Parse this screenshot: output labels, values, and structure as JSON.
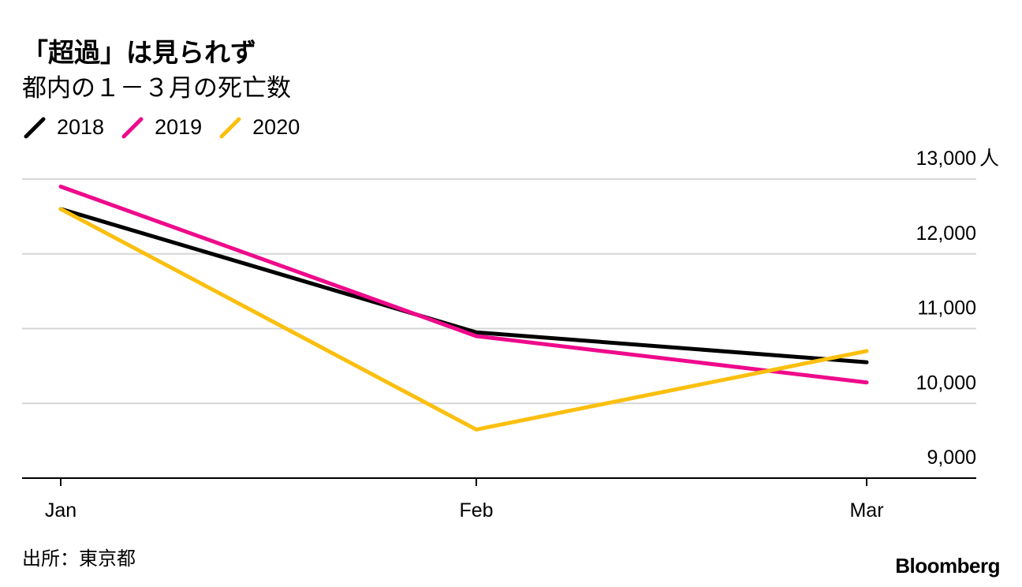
{
  "chart_data": {
    "type": "line",
    "title": "「超過」は見られず",
    "subtitle": "都内の１－３月の死亡数",
    "categories": [
      "Jan",
      "Feb",
      "Mar"
    ],
    "series": [
      {
        "name": "2018",
        "color": "#000000",
        "values": [
          12600,
          10950,
          10550
        ]
      },
      {
        "name": "2019",
        "color": "#ee0a8b",
        "values": [
          12900,
          10900,
          10280
        ]
      },
      {
        "name": "2020",
        "color": "#fbbf0f",
        "values": [
          12600,
          9650,
          10700
        ]
      }
    ],
    "yticks": [
      9000,
      10000,
      11000,
      12000,
      13000
    ],
    "ytick_labels": [
      "9,000",
      "10,000",
      "11,000",
      "12,000",
      "13,000"
    ],
    "y_unit": "人",
    "ylim": [
      9000,
      13000
    ],
    "grid": true,
    "legend_position": "top-left",
    "axis_position": "right"
  },
  "source": "出所：東京都",
  "brand": "Bloomberg"
}
